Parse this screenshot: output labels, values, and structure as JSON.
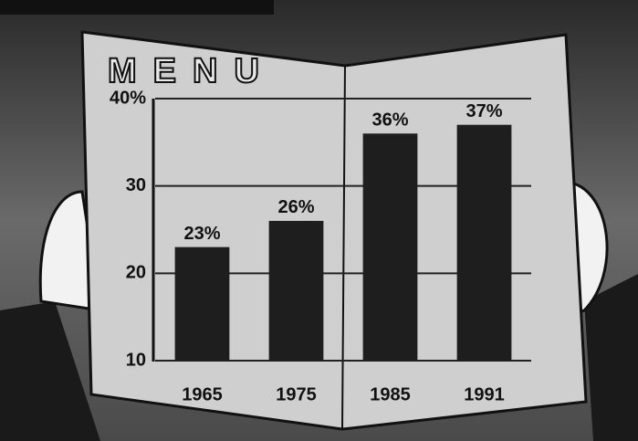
{
  "chart_data": {
    "type": "bar",
    "title": "MENU",
    "categories": [
      "1965",
      "1975",
      "1985",
      "1991"
    ],
    "values": [
      23,
      26,
      36,
      37
    ],
    "value_labels": [
      "23%",
      "26%",
      "36%",
      "37%"
    ],
    "color": "#1e1e1e",
    "ylim": [
      10,
      40
    ],
    "yticks": [
      10,
      20,
      30,
      {
        "value": 40,
        "label": "40%"
      }
    ],
    "grid": true
  }
}
